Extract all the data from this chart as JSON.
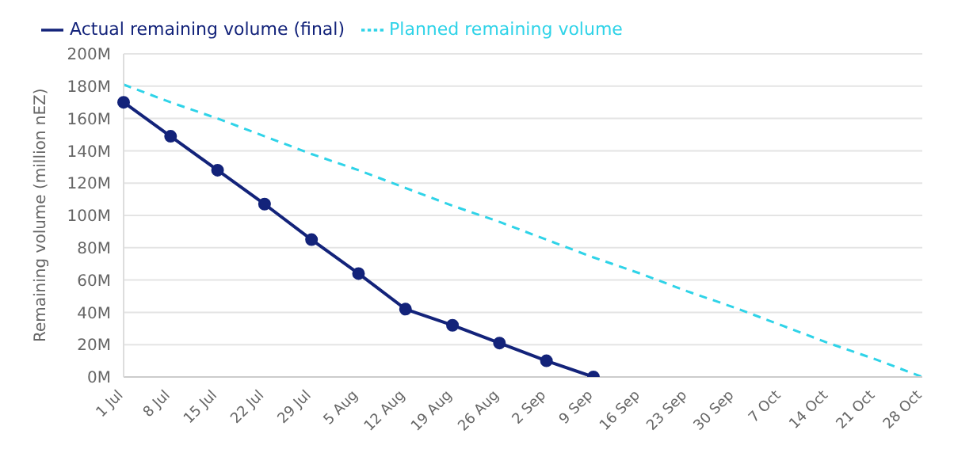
{
  "chart_data": {
    "type": "line",
    "ylabel": "Remaining volume (million nEZ)",
    "categories": [
      "1 Jul",
      "8 Jul",
      "15 Jul",
      "22 Jul",
      "29 Jul",
      "5 Aug",
      "12 Aug",
      "19 Aug",
      "26 Aug",
      "2 Sep",
      "9 Sep",
      "16 Sep",
      "23 Sep",
      "30 Sep",
      "7 Oct",
      "14 Oct",
      "21 Oct",
      "28 Oct"
    ],
    "series": [
      {
        "name": "Actual remaining volume (final)",
        "color": "#13237a",
        "marker": "circle",
        "line_style": "solid",
        "values": [
          170,
          149,
          128,
          107,
          85,
          64,
          42,
          32,
          21,
          10,
          0,
          null,
          null,
          null,
          null,
          null,
          null,
          null
        ]
      },
      {
        "name": "Planned remaining volume",
        "color": "#2fd3e8",
        "marker": "none",
        "line_style": "dashed",
        "values": [
          181,
          170,
          160,
          149,
          138,
          128,
          117,
          106,
          96,
          85,
          74,
          64,
          53,
          43,
          32,
          21,
          11,
          0
        ]
      }
    ],
    "ylim": [
      0,
      200
    ],
    "yticks": [
      {
        "value": 0,
        "label": "0M"
      },
      {
        "value": 20,
        "label": "20M"
      },
      {
        "value": 40,
        "label": "40M"
      },
      {
        "value": 60,
        "label": "60M"
      },
      {
        "value": 80,
        "label": "80M"
      },
      {
        "value": 100,
        "label": "100M"
      },
      {
        "value": 120,
        "label": "120M"
      },
      {
        "value": 140,
        "label": "140M"
      },
      {
        "value": 160,
        "label": "160M"
      },
      {
        "value": 180,
        "label": "180M"
      },
      {
        "value": 200,
        "label": "200M"
      }
    ],
    "grid": "y",
    "legend": "top left"
  }
}
